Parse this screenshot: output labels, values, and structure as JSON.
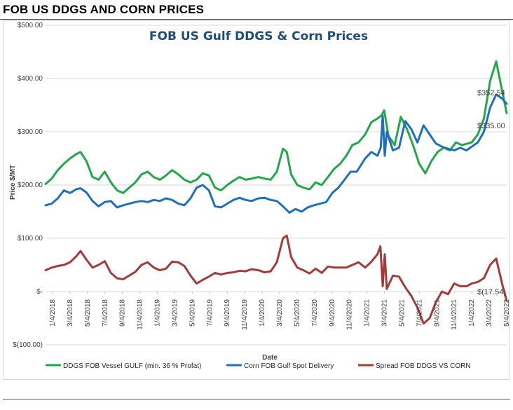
{
  "page": {
    "heading": "FOB US DDGS AND CORN PRICES"
  },
  "chart_data": {
    "type": "line",
    "title": "FOB US Gulf DDGS & Corn Prices",
    "xlabel": "Date",
    "ylabel": "Price $/MT",
    "ylim": [
      -100,
      500
    ],
    "xlim": [
      "2018-01-04",
      "2022-05-04"
    ],
    "y_ticks": [
      {
        "value": 500,
        "label": "$500.00"
      },
      {
        "value": 400,
        "label": "$400.00"
      },
      {
        "value": 300,
        "label": "$300.00"
      },
      {
        "value": 200,
        "label": "$200.00"
      },
      {
        "value": 100,
        "label": "$100.00"
      },
      {
        "value": 0,
        "label": "$-"
      },
      {
        "value": -100,
        "label": "$(100.00)"
      }
    ],
    "x_ticks": [
      "1/4/2018",
      "3/4/2018",
      "5/4/2018",
      "7/4/2018",
      "9/4/2018",
      "11/4/2018",
      "1/4/2019",
      "3/4/2019",
      "5/4/2019",
      "7/4/2019",
      "9/4/2019",
      "11/4/2019",
      "1/4/2020",
      "3/4/2020",
      "5/4/2020",
      "7/4/2020",
      "9/4/2020",
      "11/4/2020",
      "1/4/2021",
      "3/4/2021",
      "5/4/2021",
      "7/4/2021",
      "9/4/2021",
      "11/4/2021",
      "1/4/2022",
      "3/4/2022",
      "5/4/2022"
    ],
    "grid": true,
    "legend_position": "bottom",
    "annotations": [
      {
        "text": "$352.54",
        "series": "Corn FOB Gulf Spot Delivery"
      },
      {
        "text": "$335.00",
        "series": "DDGS FOB Vessel GULF  (min. 36 % Profat)"
      },
      {
        "text": "$(17.54)",
        "series": "Spread FOB DDGS VS CORN"
      }
    ],
    "series": [
      {
        "name": "DDGS FOB Vessel GULF  (min. 36 % Profat)",
        "color": "#22a84a",
        "points": [
          [
            "2018-01-04",
            202
          ],
          [
            "2018-01-25",
            212
          ],
          [
            "2018-02-15",
            228
          ],
          [
            "2018-03-08",
            240
          ],
          [
            "2018-03-29",
            250
          ],
          [
            "2018-04-19",
            258
          ],
          [
            "2018-05-04",
            262
          ],
          [
            "2018-05-24",
            245
          ],
          [
            "2018-06-14",
            215
          ],
          [
            "2018-07-05",
            210
          ],
          [
            "2018-07-26",
            225
          ],
          [
            "2018-08-16",
            205
          ],
          [
            "2018-09-06",
            190
          ],
          [
            "2018-09-27",
            185
          ],
          [
            "2018-10-18",
            195
          ],
          [
            "2018-11-08",
            205
          ],
          [
            "2018-11-29",
            220
          ],
          [
            "2018-12-20",
            225
          ],
          [
            "2019-01-10",
            215
          ],
          [
            "2019-01-31",
            210
          ],
          [
            "2019-02-21",
            218
          ],
          [
            "2019-03-14",
            228
          ],
          [
            "2019-04-04",
            220
          ],
          [
            "2019-04-25",
            210
          ],
          [
            "2019-05-16",
            205
          ],
          [
            "2019-06-06",
            210
          ],
          [
            "2019-06-27",
            222
          ],
          [
            "2019-07-18",
            218
          ],
          [
            "2019-08-08",
            195
          ],
          [
            "2019-08-29",
            190
          ],
          [
            "2019-09-19",
            200
          ],
          [
            "2019-10-10",
            208
          ],
          [
            "2019-10-31",
            215
          ],
          [
            "2019-11-21",
            210
          ],
          [
            "2019-12-12",
            212
          ],
          [
            "2020-01-04",
            215
          ],
          [
            "2020-01-25",
            212
          ],
          [
            "2020-02-15",
            210
          ],
          [
            "2020-03-07",
            225
          ],
          [
            "2020-03-28",
            268
          ],
          [
            "2020-04-10",
            262
          ],
          [
            "2020-04-25",
            220
          ],
          [
            "2020-05-16",
            200
          ],
          [
            "2020-06-06",
            195
          ],
          [
            "2020-06-27",
            192
          ],
          [
            "2020-07-18",
            205
          ],
          [
            "2020-08-08",
            200
          ],
          [
            "2020-08-29",
            215
          ],
          [
            "2020-09-19",
            230
          ],
          [
            "2020-10-10",
            240
          ],
          [
            "2020-10-31",
            255
          ],
          [
            "2020-11-21",
            275
          ],
          [
            "2020-12-12",
            280
          ],
          [
            "2021-01-04",
            295
          ],
          [
            "2021-01-25",
            318
          ],
          [
            "2021-02-15",
            325
          ],
          [
            "2021-02-28",
            330
          ],
          [
            "2021-03-10",
            340
          ],
          [
            "2021-03-25",
            292
          ],
          [
            "2021-04-15",
            275
          ],
          [
            "2021-05-06",
            328
          ],
          [
            "2021-05-27",
            305
          ],
          [
            "2021-06-17",
            275
          ],
          [
            "2021-07-08",
            240
          ],
          [
            "2021-07-29",
            222
          ],
          [
            "2021-08-19",
            245
          ],
          [
            "2021-09-09",
            262
          ],
          [
            "2021-09-30",
            270
          ],
          [
            "2021-10-21",
            265
          ],
          [
            "2021-11-11",
            280
          ],
          [
            "2021-12-02",
            275
          ],
          [
            "2022-01-04",
            280
          ],
          [
            "2022-01-25",
            295
          ],
          [
            "2022-02-15",
            325
          ],
          [
            "2022-03-08",
            395
          ],
          [
            "2022-03-29",
            432
          ],
          [
            "2022-04-19",
            375
          ],
          [
            "2022-05-04",
            335
          ]
        ]
      },
      {
        "name": "Corn FOB Gulf Spot Delivery",
        "color": "#1f6fbf",
        "points": [
          [
            "2018-01-04",
            162
          ],
          [
            "2018-01-25",
            165
          ],
          [
            "2018-02-15",
            175
          ],
          [
            "2018-03-08",
            190
          ],
          [
            "2018-03-29",
            185
          ],
          [
            "2018-04-19",
            192
          ],
          [
            "2018-05-04",
            194
          ],
          [
            "2018-05-24",
            186
          ],
          [
            "2018-06-14",
            170
          ],
          [
            "2018-07-05",
            160
          ],
          [
            "2018-07-26",
            168
          ],
          [
            "2018-08-16",
            170
          ],
          [
            "2018-09-06",
            158
          ],
          [
            "2018-09-27",
            162
          ],
          [
            "2018-10-18",
            165
          ],
          [
            "2018-11-08",
            168
          ],
          [
            "2018-11-29",
            170
          ],
          [
            "2018-12-20",
            168
          ],
          [
            "2019-01-10",
            172
          ],
          [
            "2019-01-31",
            170
          ],
          [
            "2019-02-21",
            175
          ],
          [
            "2019-03-14",
            172
          ],
          [
            "2019-04-04",
            165
          ],
          [
            "2019-04-25",
            162
          ],
          [
            "2019-05-16",
            175
          ],
          [
            "2019-06-06",
            195
          ],
          [
            "2019-06-27",
            200
          ],
          [
            "2019-07-18",
            190
          ],
          [
            "2019-08-08",
            160
          ],
          [
            "2019-08-29",
            158
          ],
          [
            "2019-09-19",
            165
          ],
          [
            "2019-10-10",
            172
          ],
          [
            "2019-10-31",
            176
          ],
          [
            "2019-11-21",
            172
          ],
          [
            "2019-12-12",
            170
          ],
          [
            "2020-01-04",
            175
          ],
          [
            "2020-01-25",
            176
          ],
          [
            "2020-02-15",
            172
          ],
          [
            "2020-03-07",
            170
          ],
          [
            "2020-03-28",
            160
          ],
          [
            "2020-04-19",
            148
          ],
          [
            "2020-05-10",
            155
          ],
          [
            "2020-05-31",
            150
          ],
          [
            "2020-06-21",
            158
          ],
          [
            "2020-07-12",
            162
          ],
          [
            "2020-08-02",
            165
          ],
          [
            "2020-08-23",
            168
          ],
          [
            "2020-09-13",
            185
          ],
          [
            "2020-10-04",
            195
          ],
          [
            "2020-10-25",
            210
          ],
          [
            "2020-11-15",
            225
          ],
          [
            "2020-12-06",
            225
          ],
          [
            "2021-01-04",
            250
          ],
          [
            "2021-01-25",
            262
          ],
          [
            "2021-02-15",
            255
          ],
          [
            "2021-02-26",
            270
          ],
          [
            "2021-03-05",
            330
          ],
          [
            "2021-03-12",
            255
          ],
          [
            "2021-03-19",
            300
          ],
          [
            "2021-04-09",
            265
          ],
          [
            "2021-04-30",
            270
          ],
          [
            "2021-05-21",
            320
          ],
          [
            "2021-06-11",
            305
          ],
          [
            "2021-07-02",
            280
          ],
          [
            "2021-07-23",
            312
          ],
          [
            "2021-08-13",
            295
          ],
          [
            "2021-09-03",
            278
          ],
          [
            "2021-09-24",
            272
          ],
          [
            "2021-10-15",
            268
          ],
          [
            "2021-11-05",
            265
          ],
          [
            "2021-11-26",
            270
          ],
          [
            "2021-12-17",
            265
          ],
          [
            "2022-01-04",
            272
          ],
          [
            "2022-01-25",
            280
          ],
          [
            "2022-02-15",
            300
          ],
          [
            "2022-03-08",
            345
          ],
          [
            "2022-03-29",
            370
          ],
          [
            "2022-04-19",
            362
          ],
          [
            "2022-05-04",
            352.54
          ]
        ]
      },
      {
        "name": "Spread FOB DDGS VS CORN",
        "color": "#a53a3a",
        "points": [
          [
            "2018-01-04",
            40
          ],
          [
            "2018-01-25",
            45
          ],
          [
            "2018-02-15",
            48
          ],
          [
            "2018-03-08",
            50
          ],
          [
            "2018-03-29",
            55
          ],
          [
            "2018-04-19",
            66
          ],
          [
            "2018-05-04",
            76
          ],
          [
            "2018-05-24",
            60
          ],
          [
            "2018-06-14",
            45
          ],
          [
            "2018-07-05",
            50
          ],
          [
            "2018-07-26",
            57
          ],
          [
            "2018-08-16",
            35
          ],
          [
            "2018-09-06",
            25
          ],
          [
            "2018-09-27",
            23
          ],
          [
            "2018-10-18",
            30
          ],
          [
            "2018-11-08",
            37
          ],
          [
            "2018-11-29",
            50
          ],
          [
            "2018-12-20",
            55
          ],
          [
            "2019-01-10",
            45
          ],
          [
            "2019-01-31",
            40
          ],
          [
            "2019-02-21",
            43
          ],
          [
            "2019-03-14",
            56
          ],
          [
            "2019-04-04",
            55
          ],
          [
            "2019-04-25",
            48
          ],
          [
            "2019-05-16",
            30
          ],
          [
            "2019-06-06",
            15
          ],
          [
            "2019-06-27",
            22
          ],
          [
            "2019-07-18",
            28
          ],
          [
            "2019-08-08",
            35
          ],
          [
            "2019-08-29",
            32
          ],
          [
            "2019-09-19",
            35
          ],
          [
            "2019-10-10",
            36
          ],
          [
            "2019-10-31",
            39
          ],
          [
            "2019-11-21",
            38
          ],
          [
            "2019-12-12",
            42
          ],
          [
            "2020-01-04",
            40
          ],
          [
            "2020-01-25",
            36
          ],
          [
            "2020-02-15",
            38
          ],
          [
            "2020-03-07",
            55
          ],
          [
            "2020-03-28",
            100
          ],
          [
            "2020-04-10",
            105
          ],
          [
            "2020-04-25",
            65
          ],
          [
            "2020-05-16",
            45
          ],
          [
            "2020-06-06",
            40
          ],
          [
            "2020-06-27",
            34
          ],
          [
            "2020-07-18",
            43
          ],
          [
            "2020-08-08",
            35
          ],
          [
            "2020-08-29",
            47
          ],
          [
            "2020-09-19",
            45
          ],
          [
            "2020-10-10",
            45
          ],
          [
            "2020-10-31",
            45
          ],
          [
            "2020-11-21",
            50
          ],
          [
            "2020-12-12",
            55
          ],
          [
            "2021-01-04",
            45
          ],
          [
            "2021-01-25",
            56
          ],
          [
            "2021-02-15",
            70
          ],
          [
            "2021-02-25",
            85
          ],
          [
            "2021-03-05",
            10
          ],
          [
            "2021-03-12",
            70
          ],
          [
            "2021-03-19",
            5
          ],
          [
            "2021-04-09",
            30
          ],
          [
            "2021-04-30",
            28
          ],
          [
            "2021-05-21",
            8
          ],
          [
            "2021-06-11",
            -8
          ],
          [
            "2021-07-02",
            -30
          ],
          [
            "2021-07-23",
            -60
          ],
          [
            "2021-08-13",
            -50
          ],
          [
            "2021-09-03",
            -20
          ],
          [
            "2021-09-24",
            0
          ],
          [
            "2021-10-15",
            -5
          ],
          [
            "2021-11-05",
            15
          ],
          [
            "2021-11-26",
            10
          ],
          [
            "2021-12-17",
            10
          ],
          [
            "2022-01-04",
            15
          ],
          [
            "2022-01-25",
            18
          ],
          [
            "2022-02-15",
            25
          ],
          [
            "2022-03-08",
            50
          ],
          [
            "2022-03-29",
            62
          ],
          [
            "2022-04-19",
            13
          ],
          [
            "2022-05-04",
            -17.54
          ]
        ]
      }
    ]
  }
}
